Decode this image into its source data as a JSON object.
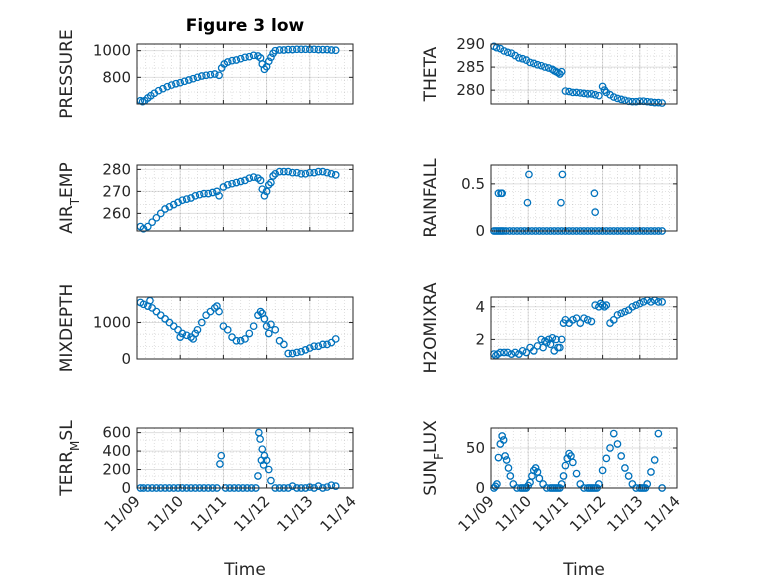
{
  "figure_title": "Figure 3 low",
  "colors": {
    "series": "#0072BD",
    "axes": "#262626",
    "background": "#ffffff"
  },
  "chart_data": [
    {
      "type": "scatter",
      "title": "Figure 3 low",
      "ylabel": "PRESSURE",
      "xlabel": "",
      "xlim": [
        0,
        5
      ],
      "ylim": [
        600,
        1050
      ],
      "yticks": [
        800,
        1000
      ],
      "grid": true,
      "x": [
        0.08,
        0.13,
        0.18,
        0.25,
        0.32,
        0.4,
        0.5,
        0.6,
        0.7,
        0.8,
        0.9,
        1.0,
        1.1,
        1.2,
        1.3,
        1.4,
        1.5,
        1.6,
        1.7,
        1.8,
        1.9,
        1.96,
        2.02,
        2.1,
        2.2,
        2.3,
        2.4,
        2.5,
        2.6,
        2.7,
        2.8,
        2.86,
        2.9,
        2.95,
        3.0,
        3.05,
        3.1,
        3.15,
        3.2,
        3.3,
        3.4,
        3.5,
        3.6,
        3.7,
        3.8,
        3.9,
        4.0,
        4.1,
        4.2,
        4.3,
        4.4,
        4.5,
        4.6
      ],
      "y": [
        625,
        618,
        625,
        645,
        662,
        680,
        700,
        715,
        730,
        742,
        752,
        760,
        770,
        780,
        790,
        800,
        810,
        815,
        820,
        825,
        815,
        870,
        900,
        915,
        925,
        930,
        940,
        950,
        955,
        965,
        960,
        945,
        900,
        860,
        880,
        920,
        950,
        980,
        1000,
        1005,
        1005,
        1008,
        1008,
        1010,
        1010,
        1010,
        1010,
        1010,
        1008,
        1008,
        1008,
        1005,
        1003
      ]
    },
    {
      "type": "scatter",
      "title": "",
      "ylabel": "THETA",
      "xlabel": "",
      "xlim": [
        0,
        5
      ],
      "ylim": [
        277,
        290
      ],
      "yticks": [
        280,
        285,
        290
      ],
      "grid": true,
      "x": [
        0.08,
        0.15,
        0.25,
        0.35,
        0.45,
        0.55,
        0.65,
        0.75,
        0.85,
        0.95,
        1.05,
        1.15,
        1.25,
        1.35,
        1.45,
        1.55,
        1.65,
        1.7,
        1.75,
        1.8,
        1.85,
        1.9,
        2.0,
        2.1,
        2.2,
        2.3,
        2.4,
        2.5,
        2.6,
        2.7,
        2.8,
        2.9,
        3.0,
        3.05,
        3.1,
        3.2,
        3.3,
        3.4,
        3.5,
        3.6,
        3.7,
        3.8,
        3.9,
        4.0,
        4.1,
        4.2,
        4.3,
        4.4,
        4.5,
        4.6
      ],
      "y": [
        289.5,
        289.2,
        289,
        288.5,
        288.2,
        288,
        287.5,
        287,
        286.8,
        286.5,
        286,
        285.8,
        285.5,
        285.3,
        285,
        284.8,
        284.5,
        284.2,
        284,
        283.8,
        283.5,
        284,
        279.8,
        279.7,
        279.5,
        279.5,
        279.4,
        279.3,
        279.2,
        279.2,
        279,
        278.8,
        280.8,
        280,
        279.5,
        279,
        278.5,
        278.2,
        278,
        277.8,
        277.6,
        277.5,
        277.5,
        277.6,
        277.6,
        277.5,
        277.4,
        277.3,
        277.3,
        277.2
      ]
    },
    {
      "type": "scatter",
      "title": "",
      "ylabel": "AIR_TEMP",
      "xlabel": "",
      "xlim": [
        0,
        5
      ],
      "ylim": [
        252,
        282
      ],
      "yticks": [
        260,
        270,
        280
      ],
      "grid": true,
      "x": [
        0.08,
        0.15,
        0.25,
        0.35,
        0.45,
        0.55,
        0.65,
        0.75,
        0.85,
        0.95,
        1.05,
        1.15,
        1.25,
        1.35,
        1.45,
        1.55,
        1.65,
        1.75,
        1.85,
        1.9,
        2.0,
        2.1,
        2.2,
        2.3,
        2.4,
        2.5,
        2.6,
        2.7,
        2.8,
        2.86,
        2.9,
        2.95,
        3.0,
        3.05,
        3.1,
        3.15,
        3.2,
        3.3,
        3.4,
        3.5,
        3.6,
        3.7,
        3.8,
        3.9,
        4.0,
        4.1,
        4.2,
        4.3,
        4.4,
        4.5,
        4.6
      ],
      "y": [
        254,
        253,
        254,
        256,
        258,
        260,
        262,
        263,
        264,
        265,
        266,
        266.5,
        267,
        268,
        268.5,
        269,
        269,
        269.5,
        270,
        268,
        272,
        273,
        273.5,
        274,
        274.5,
        275,
        276,
        276.5,
        276,
        275,
        271,
        268,
        270,
        273,
        274,
        277,
        278,
        279,
        279,
        279,
        278.5,
        278.5,
        278,
        278,
        278.5,
        278.5,
        279,
        279,
        278.5,
        278,
        277.5
      ]
    },
    {
      "type": "scatter",
      "title": "",
      "ylabel": "RAINFALL",
      "xlabel": "",
      "xlim": [
        0,
        5
      ],
      "ylim": [
        0,
        0.7
      ],
      "yticks": [
        0,
        0.5
      ],
      "grid": true,
      "x": [
        0.08,
        0.13,
        0.18,
        0.23,
        0.28,
        0.33,
        0.4,
        0.5,
        0.6,
        0.7,
        0.8,
        0.9,
        1.0,
        1.1,
        1.2,
        1.3,
        1.4,
        1.5,
        1.6,
        1.7,
        1.8,
        1.9,
        2.0,
        2.1,
        2.2,
        2.3,
        2.4,
        2.5,
        2.6,
        2.7,
        2.8,
        2.9,
        3.0,
        3.1,
        3.2,
        3.3,
        3.4,
        3.5,
        3.6,
        3.7,
        3.8,
        3.9,
        4.0,
        4.1,
        4.2,
        4.3,
        4.4,
        4.5,
        4.6,
        0.2,
        0.27,
        0.3,
        0.98,
        1.02,
        1.88,
        1.92,
        2.78,
        2.8
      ],
      "y": [
        0,
        0,
        0,
        0,
        0,
        0,
        0,
        0,
        0,
        0,
        0,
        0,
        0,
        0,
        0,
        0,
        0,
        0,
        0,
        0,
        0,
        0,
        0,
        0,
        0,
        0,
        0,
        0,
        0,
        0,
        0,
        0,
        0,
        0,
        0,
        0,
        0,
        0,
        0,
        0,
        0,
        0,
        0,
        0,
        0,
        0,
        0,
        0,
        0,
        0.4,
        0.4,
        0.4,
        0.3,
        0.6,
        0.3,
        0.6,
        0.4,
        0.2
      ]
    },
    {
      "type": "scatter",
      "title": "",
      "ylabel": "MIXDEPTH",
      "xlabel": "",
      "xlim": [
        0,
        5
      ],
      "ylim": [
        0,
        1700
      ],
      "yticks": [
        0,
        1000
      ],
      "grid": true,
      "x": [
        0.08,
        0.15,
        0.25,
        0.3,
        0.35,
        0.45,
        0.55,
        0.65,
        0.75,
        0.85,
        0.95,
        1.0,
        1.05,
        1.15,
        1.25,
        1.3,
        1.35,
        1.4,
        1.5,
        1.6,
        1.7,
        1.8,
        1.85,
        1.9,
        2.0,
        2.1,
        2.2,
        2.3,
        2.4,
        2.5,
        2.6,
        2.7,
        2.8,
        2.86,
        2.9,
        2.95,
        3.0,
        3.05,
        3.1,
        3.2,
        3.3,
        3.4,
        3.5,
        3.6,
        3.7,
        3.8,
        3.9,
        4.0,
        4.1,
        4.2,
        4.3,
        4.4,
        4.5,
        4.6
      ],
      "y": [
        1550,
        1500,
        1450,
        1600,
        1400,
        1300,
        1200,
        1100,
        1000,
        900,
        800,
        600,
        700,
        650,
        600,
        550,
        700,
        800,
        1000,
        1200,
        1300,
        1400,
        1450,
        1300,
        900,
        800,
        600,
        500,
        500,
        550,
        700,
        900,
        1200,
        1300,
        1250,
        1100,
        900,
        700,
        950,
        800,
        500,
        400,
        150,
        150,
        180,
        200,
        250,
        300,
        350,
        350,
        400,
        400,
        450,
        550
      ]
    },
    {
      "type": "scatter",
      "title": "",
      "ylabel": "H2OMIXRA",
      "xlabel": "",
      "xlim": [
        0,
        5
      ],
      "ylim": [
        0.8,
        4.6
      ],
      "yticks": [
        2,
        4
      ],
      "grid": true,
      "x": [
        0.08,
        0.13,
        0.18,
        0.25,
        0.35,
        0.45,
        0.55,
        0.65,
        0.75,
        0.85,
        0.95,
        1.05,
        1.15,
        1.25,
        1.35,
        1.4,
        1.45,
        1.5,
        1.55,
        1.6,
        1.65,
        1.7,
        1.75,
        1.8,
        1.85,
        1.9,
        1.95,
        2.0,
        2.1,
        2.2,
        2.3,
        2.4,
        2.5,
        2.6,
        2.7,
        2.8,
        2.9,
        2.95,
        3.0,
        3.05,
        3.1,
        3.2,
        3.3,
        3.4,
        3.5,
        3.6,
        3.7,
        3.8,
        3.9,
        4.0,
        4.1,
        4.2,
        4.3,
        4.4,
        4.5,
        4.6
      ],
      "y": [
        1.1,
        1.0,
        1.1,
        1.2,
        1.2,
        1.2,
        1.1,
        1.2,
        1.1,
        1.3,
        1.2,
        1.5,
        1.3,
        1.6,
        2.0,
        1.5,
        1.9,
        1.8,
        2.0,
        1.7,
        2.1,
        1.3,
        2.0,
        1.5,
        1.5,
        2.0,
        3.0,
        3.2,
        3.0,
        3.2,
        3.3,
        3.0,
        3.3,
        3.2,
        3.1,
        4.1,
        4.0,
        4.2,
        4.1,
        4.0,
        4.1,
        3.0,
        3.2,
        3.5,
        3.6,
        3.7,
        3.8,
        4.0,
        4.1,
        4.2,
        4.3,
        4.4,
        4.3,
        4.4,
        4.3,
        4.3
      ]
    },
    {
      "type": "scatter",
      "title": "",
      "ylabel": "TERR_MSL",
      "xlabel": "Time",
      "xlim": [
        0,
        5
      ],
      "ylim": [
        0,
        650
      ],
      "yticks": [
        0,
        200,
        400,
        600
      ],
      "xticklabels": [
        "11/09",
        "11/10",
        "11/11",
        "11/12",
        "11/13",
        "11/14"
      ],
      "grid": true,
      "x": [
        0.08,
        0.15,
        0.25,
        0.35,
        0.45,
        0.55,
        0.65,
        0.75,
        0.85,
        0.95,
        1.05,
        1.15,
        1.25,
        1.35,
        1.45,
        1.55,
        1.65,
        1.75,
        1.85,
        1.92,
        1.95,
        2.05,
        2.15,
        2.25,
        2.35,
        2.45,
        2.55,
        2.65,
        2.75,
        2.8,
        2.82,
        2.85,
        2.88,
        2.9,
        2.93,
        2.95,
        3.0,
        3.05,
        3.1,
        3.2,
        3.3,
        3.4,
        3.5,
        3.6,
        3.7,
        3.8,
        3.9,
        4.0,
        4.1,
        4.2,
        4.3,
        4.4,
        4.5,
        4.6
      ],
      "y": [
        0,
        0,
        0,
        0,
        0,
        0,
        0,
        0,
        0,
        0,
        0,
        0,
        0,
        0,
        0,
        0,
        0,
        0,
        0,
        260,
        350,
        0,
        0,
        0,
        0,
        0,
        0,
        0,
        0,
        130,
        600,
        530,
        300,
        420,
        250,
        350,
        300,
        200,
        80,
        0,
        0,
        0,
        0,
        20,
        0,
        0,
        0,
        10,
        0,
        20,
        0,
        10,
        30,
        20
      ]
    },
    {
      "type": "scatter",
      "title": "",
      "ylabel": "SUN_FLUX",
      "xlabel": "Time",
      "xlim": [
        0,
        5
      ],
      "ylim": [
        0,
        75
      ],
      "yticks": [
        0,
        50
      ],
      "xticklabels": [
        "11/09",
        "11/10",
        "11/11",
        "11/12",
        "11/13",
        "11/14"
      ],
      "grid": true,
      "x": [
        0.08,
        0.12,
        0.16,
        0.2,
        0.25,
        0.3,
        0.34,
        0.38,
        0.42,
        0.47,
        0.52,
        0.6,
        0.7,
        0.8,
        0.85,
        0.9,
        0.95,
        1.0,
        1.05,
        1.1,
        1.15,
        1.2,
        1.25,
        1.3,
        1.4,
        1.5,
        1.6,
        1.65,
        1.7,
        1.75,
        1.8,
        1.85,
        1.9,
        1.95,
        2.0,
        2.05,
        2.1,
        2.15,
        2.2,
        2.3,
        2.4,
        2.5,
        2.6,
        2.65,
        2.7,
        2.75,
        2.8,
        2.85,
        2.9,
        3.0,
        3.1,
        3.2,
        3.3,
        3.4,
        3.5,
        3.6,
        3.7,
        3.8,
        3.9,
        4.0,
        4.05,
        4.1,
        4.15,
        4.2,
        4.3,
        4.4,
        4.5,
        4.6
      ],
      "y": [
        0,
        2,
        5,
        38,
        55,
        65,
        60,
        40,
        35,
        25,
        15,
        5,
        0,
        0,
        0,
        0,
        0,
        3,
        7,
        15,
        22,
        25,
        20,
        12,
        5,
        0,
        0,
        0,
        0,
        0,
        0,
        0,
        5,
        15,
        28,
        37,
        43,
        40,
        32,
        18,
        5,
        0,
        0,
        0,
        0,
        0,
        0,
        0,
        5,
        22,
        37,
        50,
        68,
        55,
        40,
        25,
        15,
        5,
        0,
        0,
        0,
        0,
        0,
        5,
        20,
        35,
        68,
        0
      ]
    }
  ]
}
